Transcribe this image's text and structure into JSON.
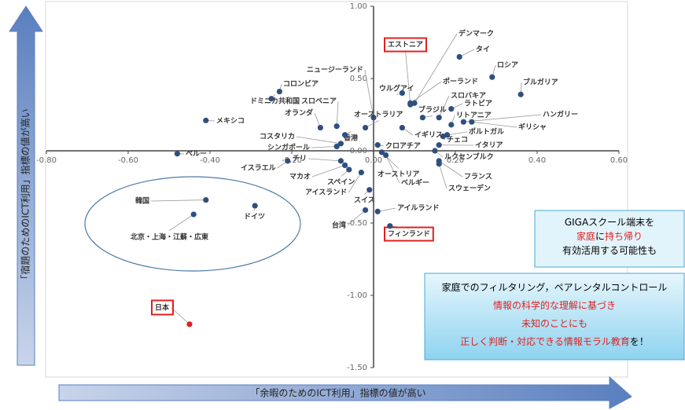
{
  "chart_data": {
    "type": "scatter",
    "xlabel": "「余暇のためのICT利用」指標の値が高い",
    "ylabel": "「宿題のためのICT利用」指標の値が高い",
    "xlim": [
      -0.8,
      0.6
    ],
    "ylim": [
      -1.5,
      1.0
    ],
    "xticks": [
      {
        "value": -0.8,
        "label": "-0.80"
      },
      {
        "value": -0.6,
        "label": "-0.60"
      },
      {
        "value": -0.4,
        "label": "-0.40"
      },
      {
        "value": -0.2,
        "label": "-0.20"
      },
      {
        "value": 0,
        "label": "0.00"
      },
      {
        "value": 0.2,
        "label": "0.20"
      },
      {
        "value": 0.4,
        "label": "0.40"
      },
      {
        "value": 0.6,
        "label": "0.60"
      }
    ],
    "yticks": [
      {
        "value": 1.0,
        "label": "1.00"
      },
      {
        "value": 0.5,
        "label": "0.50"
      },
      {
        "value": 0,
        "label": "0.00"
      },
      {
        "value": -0.5,
        "label": "-0.50"
      },
      {
        "value": -1.0,
        "label": "-1.00"
      },
      {
        "value": -1.5,
        "label": "-1.50"
      }
    ],
    "color": "#2f4f7f",
    "highlight_color": "#e02020",
    "points": [
      {
        "label": "デンマーク",
        "x": 0.1,
        "y": 0.33
      },
      {
        "label": "エストニア",
        "x": 0.09,
        "y": 0.32,
        "boxed": true
      },
      {
        "label": "タイ",
        "x": 0.21,
        "y": 0.65
      },
      {
        "label": "ロシア",
        "x": 0.29,
        "y": 0.51
      },
      {
        "label": "ブルガリア",
        "x": 0.36,
        "y": 0.39
      },
      {
        "label": "ニュージーランド",
        "x": 0.0,
        "y": 0.23
      },
      {
        "label": "ウルグアイ",
        "x": 0.07,
        "y": 0.4
      },
      {
        "label": "ポーランド",
        "x": 0.09,
        "y": 0.33
      },
      {
        "label": "スロバキア",
        "x": 0.16,
        "y": 0.23
      },
      {
        "label": "ラトビア",
        "x": 0.19,
        "y": 0.29
      },
      {
        "label": "ブラジル",
        "x": 0.12,
        "y": 0.23
      },
      {
        "label": "リトアニア",
        "x": 0.19,
        "y": 0.18
      },
      {
        "label": "ハンガリー",
        "x": 0.22,
        "y": 0.2
      },
      {
        "label": "ギリシャ",
        "x": 0.24,
        "y": 0.2
      },
      {
        "label": "ポルトガル",
        "x": 0.18,
        "y": 0.11
      },
      {
        "label": "チェコ",
        "x": 0.17,
        "y": 0.1
      },
      {
        "label": "イタリア",
        "x": 0.16,
        "y": 0.04
      },
      {
        "label": "ルクセンブルク",
        "x": 0.15,
        "y": 0.0
      },
      {
        "label": "フランス",
        "x": 0.16,
        "y": -0.07
      },
      {
        "label": "スウェーデン",
        "x": 0.16,
        "y": -0.09
      },
      {
        "label": "オーストリア",
        "x": 0.02,
        "y": -0.01
      },
      {
        "label": "ベルギー",
        "x": 0.03,
        "y": -0.03
      },
      {
        "label": "クロアチア",
        "x": 0.01,
        "y": 0.04
      },
      {
        "label": "イギリス",
        "x": 0.07,
        "y": 0.16
      },
      {
        "label": "オーストラリア",
        "x": -0.02,
        "y": 0.16
      },
      {
        "label": "コロンビア",
        "x": -0.23,
        "y": 0.41
      },
      {
        "label": "ドミニカ共和国",
        "x": -0.25,
        "y": 0.36
      },
      {
        "label": "スロベニア",
        "x": -0.09,
        "y": 0.17
      },
      {
        "label": "オランダ",
        "x": -0.13,
        "y": 0.16
      },
      {
        "label": "コスタリカ",
        "x": -0.08,
        "y": 0.05
      },
      {
        "label": "香港",
        "x": -0.07,
        "y": 0.11
      },
      {
        "label": "シンガポール",
        "x": -0.09,
        "y": 0.03
      },
      {
        "label": "チリ",
        "x": -0.08,
        "y": -0.07
      },
      {
        "label": "イスラエル",
        "x": -0.21,
        "y": -0.07
      },
      {
        "label": "マカオ",
        "x": -0.07,
        "y": -0.1
      },
      {
        "label": "スペイン",
        "x": -0.06,
        "y": -0.13
      },
      {
        "label": "アイスランド",
        "x": -0.03,
        "y": -0.15
      },
      {
        "label": "スイス",
        "x": -0.01,
        "y": -0.27
      },
      {
        "label": "台湾",
        "x": -0.02,
        "y": -0.41
      },
      {
        "label": "アイルランド",
        "x": 0.01,
        "y": -0.42
      },
      {
        "label": "フィンランド",
        "x": 0.04,
        "y": -0.52,
        "boxed": true
      },
      {
        "label": "メキシコ",
        "x": -0.41,
        "y": 0.21
      },
      {
        "label": "ペルー",
        "x": -0.48,
        "y": -0.02
      },
      {
        "label": "韓国",
        "x": -0.41,
        "y": -0.34
      },
      {
        "label": "ドイツ",
        "x": -0.29,
        "y": -0.38
      },
      {
        "label": "北京・上海・江蘇・広東",
        "x": -0.44,
        "y": -0.44
      },
      {
        "label": "日本",
        "x": -0.45,
        "y": -1.2,
        "boxed": true,
        "highlight": true
      }
    ]
  },
  "callouts": [
    {
      "lines": [
        [
          {
            "text": "GIGAスクール端末を",
            "color": "#000000"
          }
        ],
        [
          {
            "text": "家庭",
            "color": "#e02020"
          },
          {
            "text": "に",
            "color": "#000000"
          },
          {
            "text": "持ち帰り",
            "color": "#e02020"
          }
        ],
        [
          {
            "text": "有効活用する可能性も",
            "color": "#000000"
          }
        ]
      ]
    },
    {
      "lines": [
        [
          {
            "text": "家庭でのフィルタリング，ペアレンタルコントロール",
            "color": "#000000"
          }
        ],
        [
          {
            "text": "情報の科学的な理解に基づき",
            "color": "#e02020"
          }
        ],
        [
          {
            "text": "未知のことにも",
            "color": "#e02020"
          }
        ],
        [
          {
            "text": "正しく判断・対応できる情報モラル教育",
            "color": "#e02020"
          },
          {
            "text": "を！",
            "color": "#000000"
          }
        ]
      ]
    }
  ]
}
